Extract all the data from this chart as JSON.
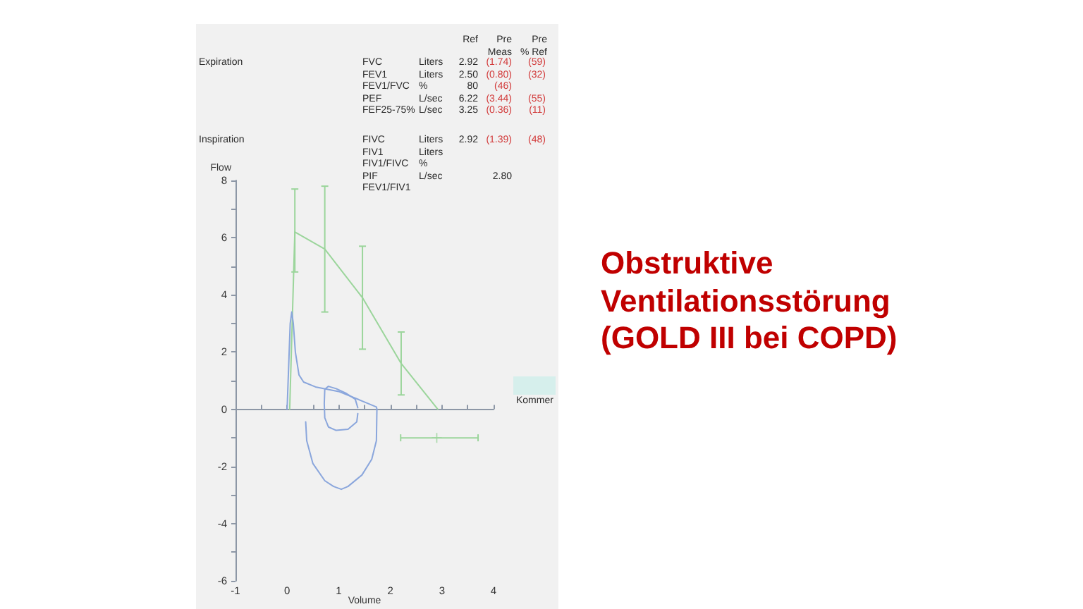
{
  "chart_data": {
    "type": "line",
    "title": "Obstruktive Ventilationsstörung (GOLD III bei COPD)",
    "xlabel": "Volume",
    "ylabel": "Flow",
    "xlim": [
      -1,
      4
    ],
    "ylim": [
      -6,
      8
    ],
    "xticks": [
      -1,
      0,
      1,
      2,
      3,
      4
    ],
    "yticks": [
      -6,
      -4,
      -2,
      0,
      2,
      4,
      6,
      8
    ],
    "marker": "none",
    "line_style": "solid",
    "series": [
      {
        "color": "#9bd59b",
        "x": [
          0.05,
          0.15,
          0.73,
          1.46,
          2.21,
          2.92
        ],
        "values": [
          0,
          6.2,
          5.6,
          3.9,
          1.6,
          0
        ],
        "errors": [
          null,
          [
            4.8,
            7.7
          ],
          [
            3.4,
            7.8
          ],
          [
            2.1,
            5.7
          ],
          [
            0.5,
            2.7
          ],
          null
        ]
      },
      {
        "type": "scatter",
        "marker": "cross",
        "color": "#9bd59b",
        "x": [
          2.9
        ],
        "values": [
          -1
        ],
        "xerrors": [
          [
            2.2,
            3.7
          ]
        ]
      },
      {
        "color": "#8aa6dc",
        "x": [
          0,
          0.03,
          0.06,
          0.09,
          0.12,
          0.16,
          0.23,
          0.32,
          0.55,
          1.0,
          1.45,
          1.73,
          1.74,
          1.73,
          1.64,
          1.45,
          1.18,
          1.05,
          0.9,
          0.73,
          0.5,
          0.38,
          0.36
        ],
        "values": [
          0,
          1.5,
          3.0,
          3.4,
          3.0,
          2.0,
          1.2,
          0.95,
          0.78,
          0.62,
          0.29,
          0.08,
          0,
          -1.1,
          -1.75,
          -2.3,
          -2.7,
          -2.8,
          -2.7,
          -2.5,
          -1.9,
          -1.1,
          -0.44
        ]
      },
      {
        "color": "#8aa6dc",
        "x": [
          1.37,
          1.32,
          1.15,
          0.95,
          0.8,
          0.73,
          0.72,
          0.73,
          0.8,
          0.95,
          1.18,
          1.35,
          1.37
        ],
        "values": [
          0.05,
          0.35,
          0.55,
          0.72,
          0.8,
          0.7,
          0.2,
          -0.3,
          -0.62,
          -0.74,
          -0.7,
          -0.44,
          -0.15
        ]
      }
    ],
    "annotations": [
      "Ref",
      "Pre Meas",
      "Pre % Ref",
      "Expiration",
      "FVC\tLiters\t2.92\t(1.74)\t(59)",
      "FEV1\tLiters\t2.50\t(0.80)\t(32)",
      "FEV1/FVC\t%\t80\t(46)",
      "PEF\tL/sec\t6.22\t(3.44)\t(55)",
      "FEF25-75%\tL/sec\t3.25\t(0.36)\t(11)",
      "Inspiration",
      "FIVC\tLiters\t2.92\t(1.39)\t(48)",
      "FIV1\tLiters",
      "FIV1/FIVC\t%",
      "PIF\tL/sec\t\t2.80",
      "FEV1/FIV1",
      "Kommer"
    ]
  }
}
